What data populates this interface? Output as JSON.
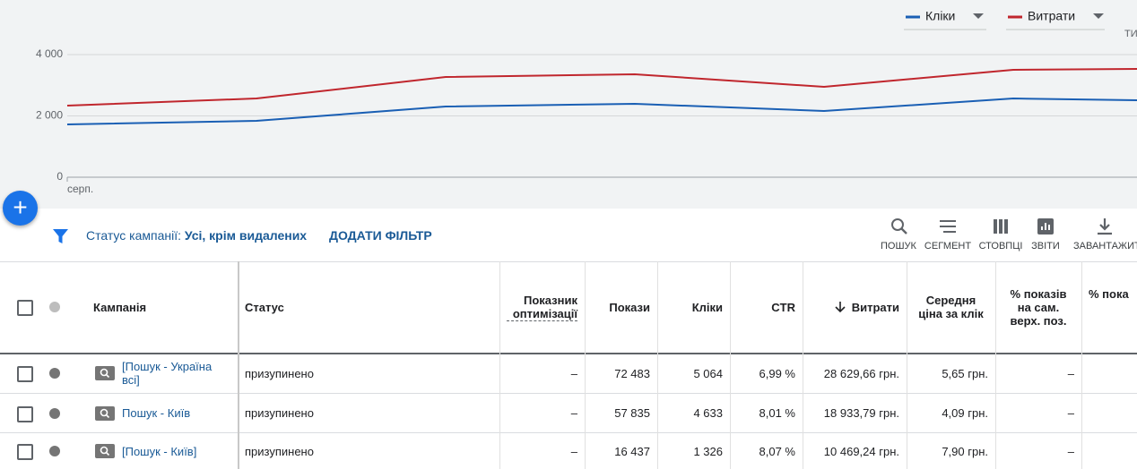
{
  "chart_data": {
    "type": "line",
    "categories": [
      "серп.",
      null,
      null,
      null,
      null,
      null,
      null
    ],
    "series": [
      {
        "name": "Кліки",
        "color": "#1a5fb4",
        "values": [
          1723,
          1840,
          2306,
          2394,
          2160,
          2569,
          2480
        ]
      },
      {
        "name": "Витрати",
        "color": "#c0262d",
        "values": [
          2336,
          2569,
          3270,
          3358,
          2949,
          3504,
          3548
        ]
      }
    ],
    "ylim": [
      0,
      4000
    ],
    "yticks": [
      0,
      {
        "value": 2000,
        "label": "2 000"
      },
      {
        "value": 4000,
        "label": "4 000"
      }
    ],
    "grid": true,
    "period": "ТИ"
  },
  "filter": {
    "label": "Статус кампанії:",
    "value": "Усі, крім видалених",
    "add": "ДОДАТИ ФІЛЬТР"
  },
  "toolbar": [
    "ПОШУК",
    "СЕГМЕНТ",
    "СТОВПЦІ",
    "ЗВІТИ",
    "ЗАВАНТАЖИТИ"
  ],
  "table": {
    "headers": [
      "Кампанія",
      "Статус",
      "Показник оптимізації",
      "Покази",
      "Кліки",
      "CTR",
      "Витрати",
      "Середня ціна за клік",
      "% показів на сам. верх. поз.",
      "% пока"
    ],
    "rows": [
      [
        "[Пошук - Україна всі]",
        "призупинено",
        "–",
        "72 483",
        "5 064",
        "6,99 %",
        "28 629,66 грн.",
        "5,65 грн.",
        "–",
        ""
      ],
      [
        "Пошук - Київ",
        "призупинено",
        "–",
        "57 835",
        "4 633",
        "8,01 %",
        "18 933,79 грн.",
        "4,09 грн.",
        "–",
        ""
      ],
      [
        "[Пошук - Київ]",
        "призупинено",
        "–",
        "16 437",
        "1 326",
        "8,07 %",
        "10 469,24 грн.",
        "7,90 грн.",
        "–",
        ""
      ]
    ]
  }
}
